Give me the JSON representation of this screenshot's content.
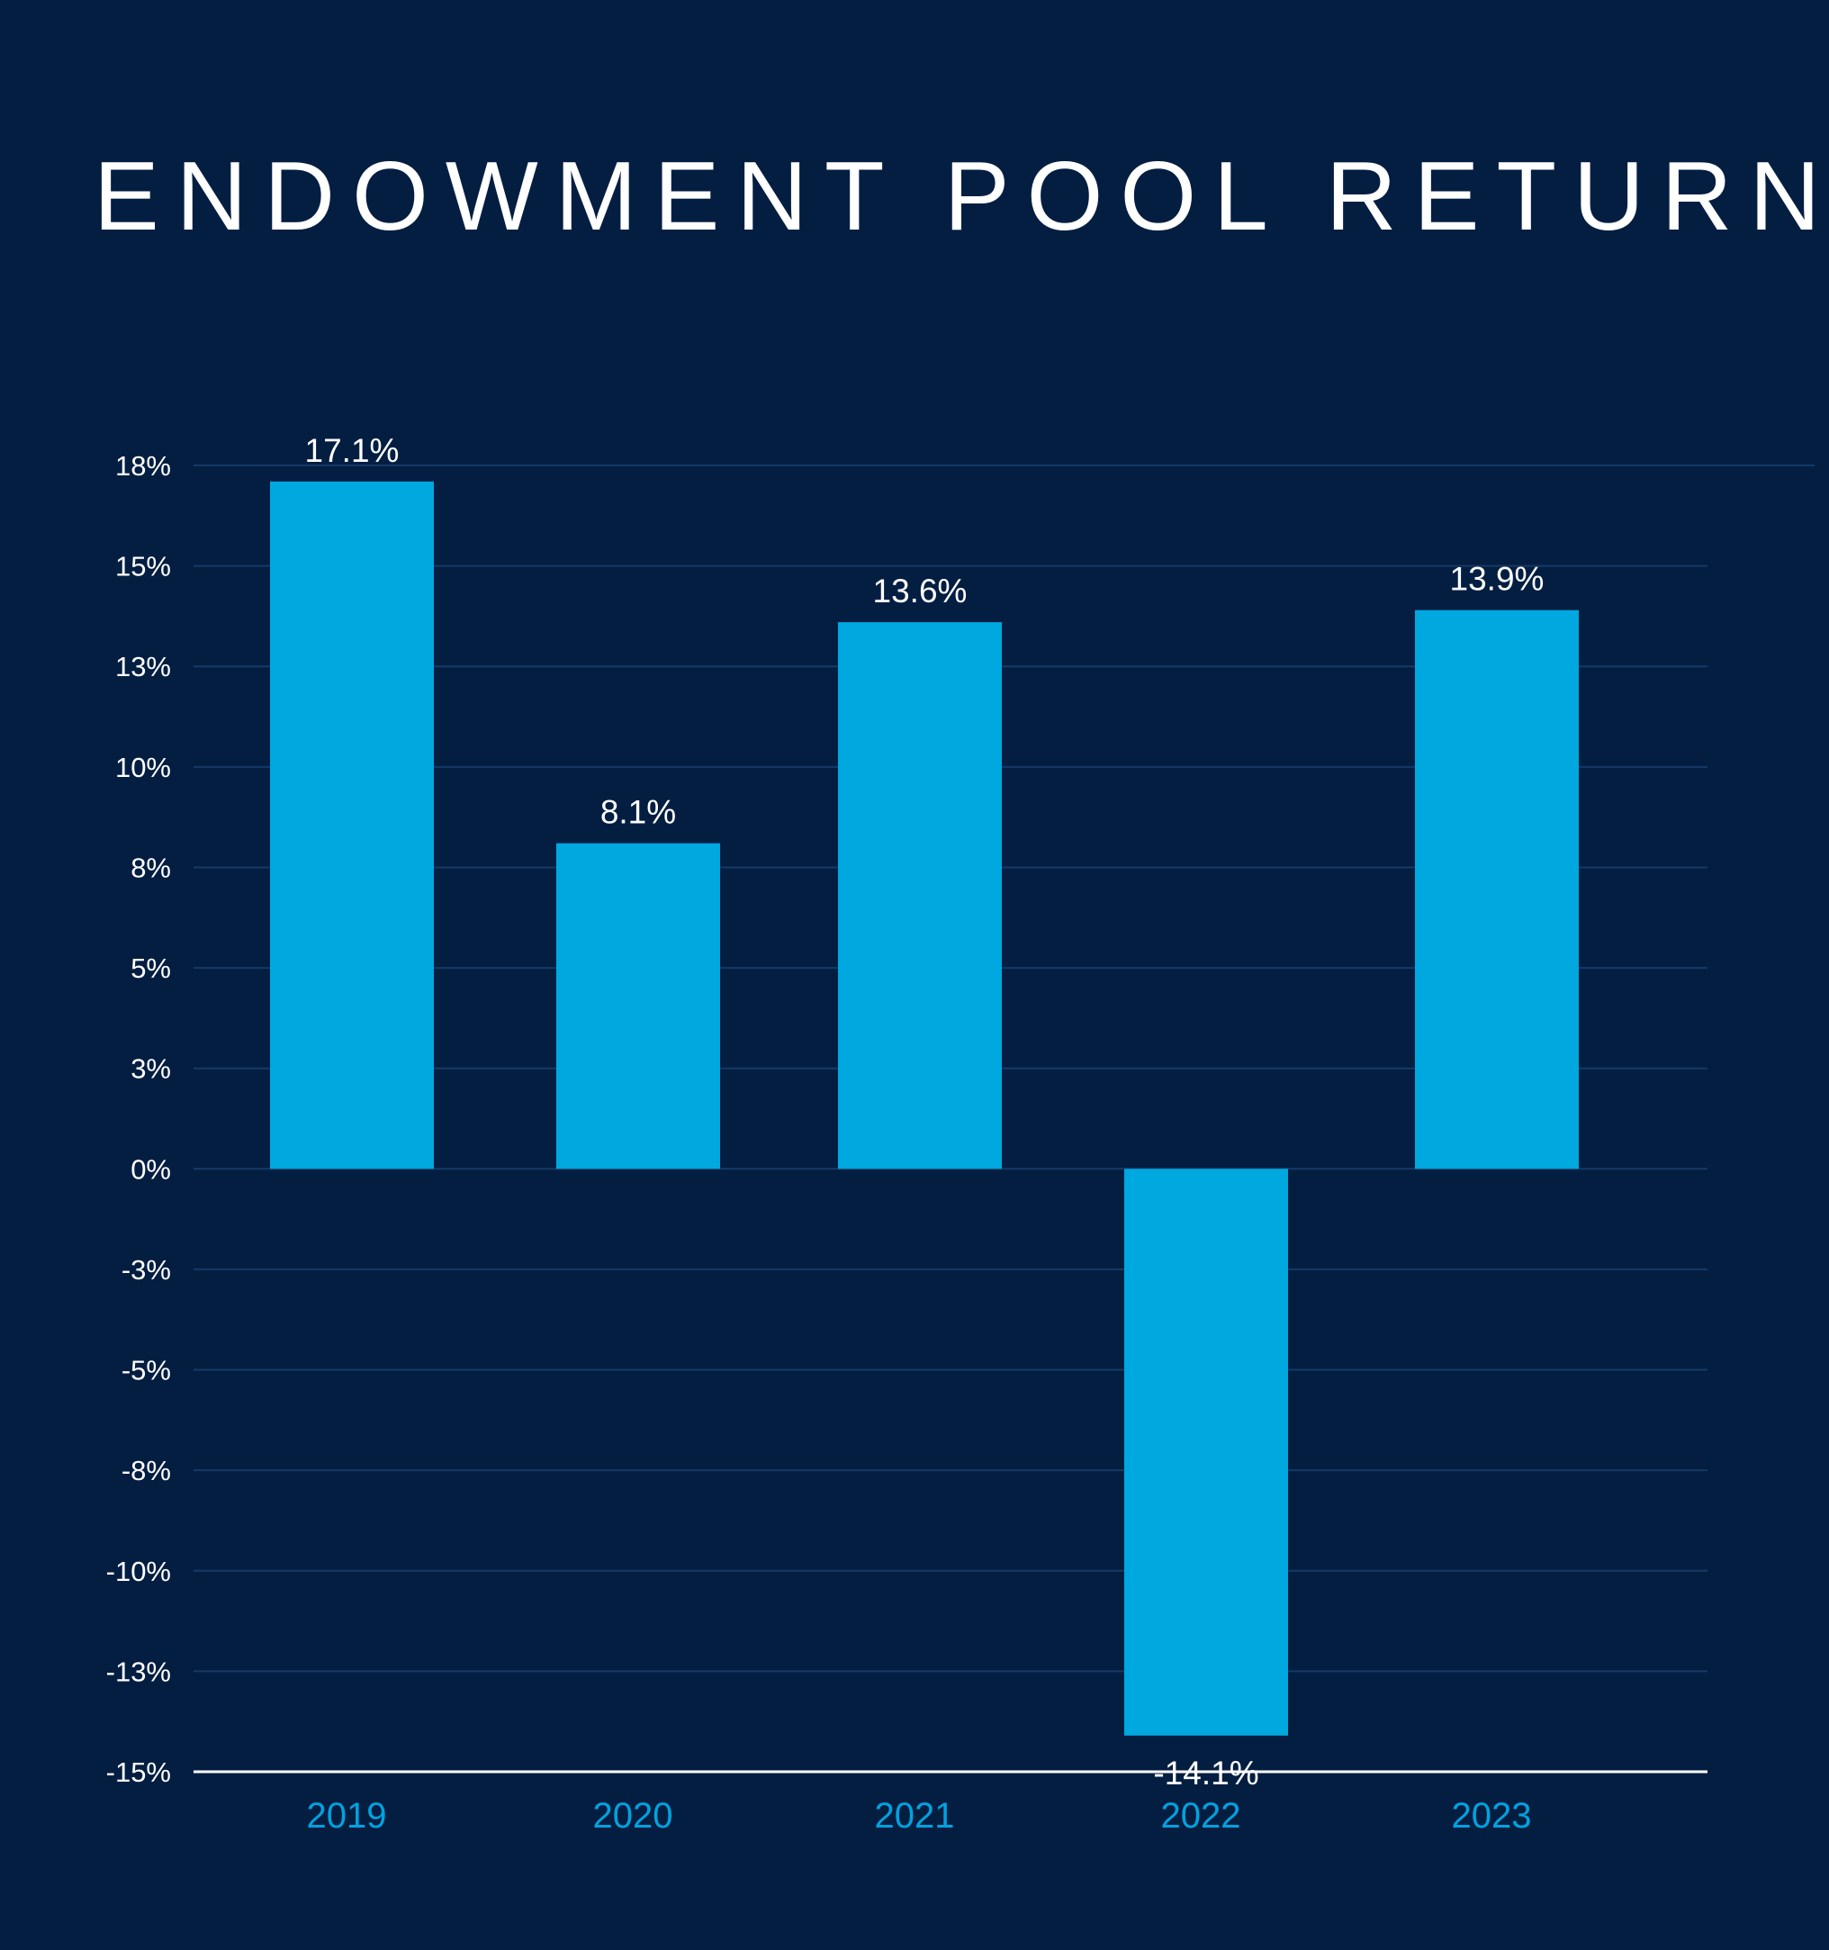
{
  "chart_data": {
    "type": "bar",
    "title": "ENDOWMENT POOL RETURNS",
    "xlabel": "",
    "ylabel": "",
    "categories": [
      "2019",
      "2020",
      "2021",
      "2022",
      "2023"
    ],
    "values": [
      17.1,
      8.1,
      13.6,
      -14.1,
      13.9
    ],
    "data_labels": [
      "17.1%",
      "8.1%",
      "13.6%",
      "-14.1%",
      "13.9%"
    ],
    "y_tick_values": [
      17.5,
      15,
      12.5,
      10,
      7.5,
      5,
      2.5,
      0,
      -2.5,
      -5,
      -7.5,
      -10,
      -12.5,
      -15
    ],
    "y_tick_labels": [
      "18%",
      "15%",
      "13%",
      "10%",
      "8%",
      "5%",
      "3%",
      "0%",
      "-3%",
      "-5%",
      "-8%",
      "-10%",
      "-13%",
      "-15%"
    ],
    "ylim": [
      -15,
      17.5
    ],
    "grid": true,
    "legend": "none",
    "colors": {
      "background": "#041e42",
      "bar": "#00a8e0",
      "title": "#ffffff",
      "tick_label": "#ffffff",
      "category_label": "#00a3e0",
      "data_label": "#ffffff",
      "gridline": "#153a66",
      "baseline": "#ffffff"
    }
  }
}
